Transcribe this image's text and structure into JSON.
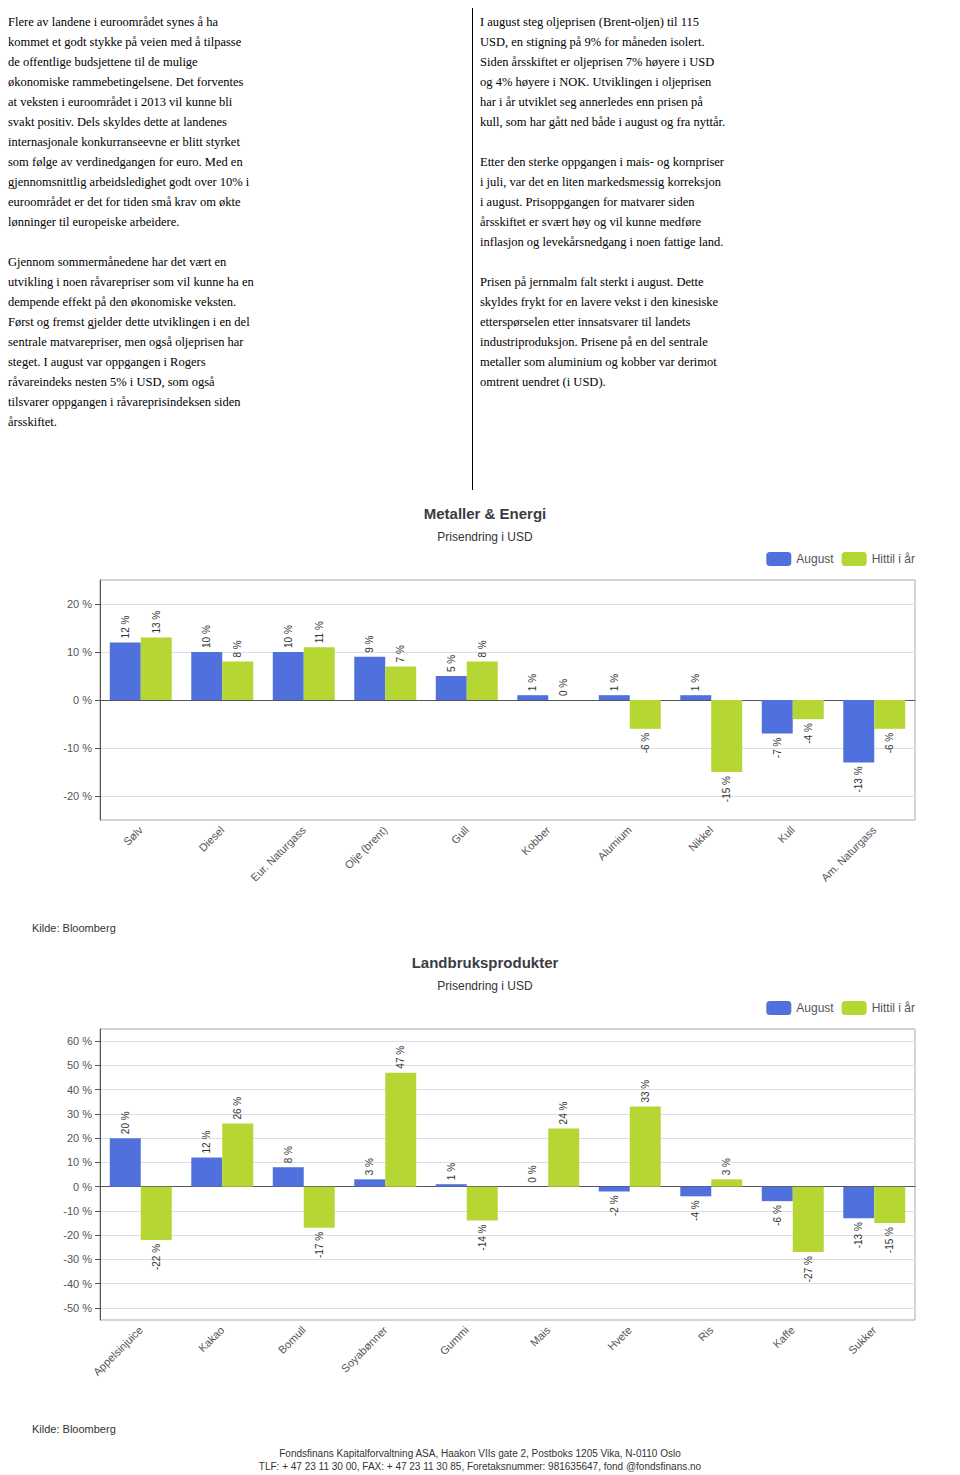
{
  "text_left": [
    [
      "Flere av landene i euroområdet synes å ha",
      "kommet et godt stykke på veien med å tilpasse",
      "de offentlige budsjettene til de mulige",
      "økonomiske rammebetingelsene. Det forventes",
      "at veksten i euroområdet i 2013 vil kunne bli",
      "svakt positiv. Dels skyldes dette at landenes",
      "internasjonale konkurranseevne er blitt styrket",
      "som følge av verdinedgangen for euro. Med en",
      "gjennomsnittlig arbeidsledighet godt over 10% i",
      "euroområdet er det for tiden små krav om økte",
      "lønninger til europeiske arbeidere."
    ],
    [
      "Gjennom sommermånedene har det vært en",
      "utvikling i noen råvarepriser som vil kunne ha en",
      "dempende effekt på den økonomiske veksten.",
      "Først og fremst gjelder dette utviklingen i en del",
      "sentrale matvarepriser, men også oljeprisen har",
      "steget. I august var oppgangen i Rogers",
      "råvareindeks nesten 5%  i USD, som også",
      "tilsvarer oppgangen i råvareprisindeksen siden",
      "årsskiftet."
    ]
  ],
  "text_right": [
    [
      "I august steg oljeprisen (Brent-oljen) til 115",
      "USD, en stigning på 9% for måneden isolert.",
      "Siden årsskiftet er oljeprisen 7% høyere i USD",
      "og 4% høyere i NOK. Utviklingen i oljeprisen",
      "har i år utviklet seg annerledes enn prisen på",
      "kull, som har gått ned både i august og fra nyttår."
    ],
    [
      "Etter den sterke oppgangen i mais- og kornpriser",
      "i juli, var det en liten markedsmessig korreksjon",
      "i august. Prisoppgangen for matvarer siden",
      "årsskiftet er svært høy og vil kunne medføre",
      "inflasjon og levekårsnedgang i noen fattige land."
    ],
    [
      "Prisen på jernmalm falt sterkt i august. Dette",
      "skyldes frykt for en lavere vekst i den kinesiske",
      "etterspørselen etter innsatsvarer til landets",
      "industriproduksjon. Prisene på en del sentrale",
      "metaller som aluminium og kobber var derimot",
      "omtrent uendret (i USD)."
    ]
  ],
  "footer": [
    "Fondsfinans Kapitalforvaltning ASA, Haakon VIIs gate 2, Postboks 1205 Vika, N-0110 Oslo",
    "TLF: + 47 23 11 30 00, FAX: + 47 23 11 30 85, Foretaksnummer: 981635647, fond @fondsfinans.no"
  ],
  "chart_data": [
    {
      "type": "bar",
      "title": "Metaller & Energi",
      "subtitle": "Prisendring i USD",
      "categories": [
        "Sølv",
        "Diesel",
        "Eur. Naturgass",
        "Olje (brent)",
        "Gull",
        "Kobber",
        "Alumium",
        "Nikkel",
        "Kull",
        "Am. Naturgass"
      ],
      "series": [
        {
          "name": "August",
          "values": [
            12,
            10,
            10,
            9,
            5,
            1,
            1,
            1,
            -7,
            -13
          ],
          "value_labels": [
            "12 %",
            "10 %",
            "10 %",
            "9 %",
            "5 %",
            "1 %",
            "1 %",
            "1 %",
            "-7 %",
            "-13 %"
          ]
        },
        {
          "name": "Hittil i år",
          "values": [
            13,
            8,
            11,
            7,
            8,
            0,
            -6,
            -15,
            -4,
            -6
          ],
          "value_labels": [
            "13 %",
            "8 %",
            "11 %",
            "7 %",
            "8 %",
            "0 %",
            "-6 %",
            "-15 %",
            "-4 %",
            "-6 %"
          ]
        }
      ],
      "ylim": [
        -25,
        25
      ],
      "yticks": [
        {
          "value": -20,
          "label": "-20 %"
        },
        {
          "value": -10,
          "label": "-10 %"
        },
        {
          "value": 0,
          "label": "0 %"
        },
        {
          "value": 10,
          "label": "10 %"
        },
        {
          "value": 20,
          "label": "20 %"
        }
      ],
      "grid": true,
      "legend": "upper right",
      "data_labels": true,
      "annotations": [
        "Kilde: Bloomberg"
      ]
    },
    {
      "type": "bar",
      "title": "Landbruksprodukter",
      "subtitle": "Prisendring i USD",
      "categories": [
        "Appelsinjuice",
        "Kakao",
        "Bomull",
        "Soyabønner",
        "Gummi",
        "Mais",
        "Hvete",
        "Ris",
        "Kaffe",
        "Sukker"
      ],
      "series": [
        {
          "name": "August",
          "values": [
            20,
            12,
            8,
            3,
            1,
            0,
            -2,
            -4,
            -6,
            -13
          ],
          "value_labels": [
            "20 %",
            "12 %",
            "8 %",
            "3 %",
            "1 %",
            "0 %",
            "-2 %",
            "-4 %",
            "-6 %",
            "-13 %"
          ]
        },
        {
          "name": "Hittil i år",
          "values": [
            -22,
            26,
            -17,
            47,
            -14,
            24,
            33,
            3,
            -27,
            -15
          ],
          "value_labels": [
            "-22 %",
            "26 %",
            "-17 %",
            "47 %",
            "-14 %",
            "24 %",
            "33 %",
            "3 %",
            "-27 %",
            "-15 %"
          ]
        }
      ],
      "ylim": [
        -55,
        65
      ],
      "yticks": [
        {
          "value": -50,
          "label": "-50 %"
        },
        {
          "value": -40,
          "label": "-40 %"
        },
        {
          "value": -30,
          "label": "-30 %"
        },
        {
          "value": -20,
          "label": "-20 %"
        },
        {
          "value": -10,
          "label": "-10 %"
        },
        {
          "value": 0,
          "label": "0 %"
        },
        {
          "value": 10,
          "label": "10 %"
        },
        {
          "value": 20,
          "label": "20 %"
        },
        {
          "value": 30,
          "label": "30 %"
        },
        {
          "value": 40,
          "label": "40 %"
        },
        {
          "value": 50,
          "label": "50 %"
        },
        {
          "value": 60,
          "label": "60 %"
        }
      ],
      "grid": true,
      "legend": "upper right",
      "data_labels": true,
      "annotations": [
        "Kilde: Bloomberg"
      ]
    }
  ]
}
